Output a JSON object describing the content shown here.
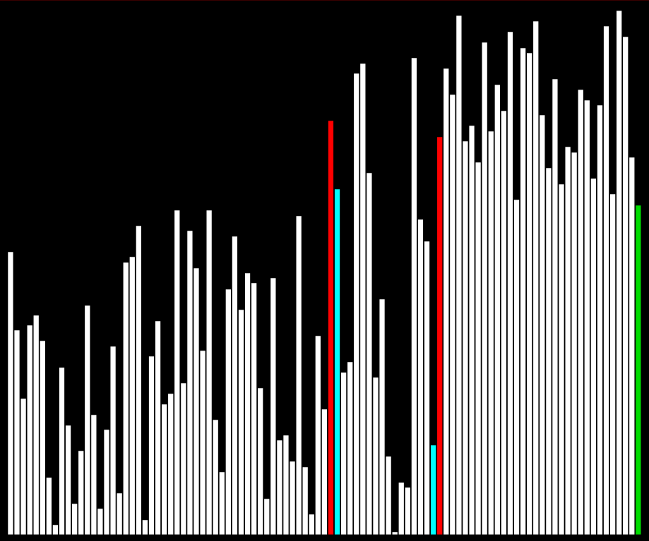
{
  "chart_data": {
    "type": "bar",
    "ylim": [
      0,
      745
    ],
    "grid": false,
    "legend": "none",
    "values": [
      401,
      290,
      193,
      297,
      311,
      275,
      81,
      14,
      237,
      155,
      44,
      119,
      325,
      170,
      37,
      149,
      267,
      59,
      386,
      394,
      438,
      21,
      253,
      303,
      185,
      200,
      460,
      215,
      431,
      378,
      261,
      460,
      163,
      89,
      348,
      423,
      319,
      371,
      357,
      208,
      51,
      364,
      134,
      141,
      104,
      452,
      96,
      29,
      282,
      178,
      587,
      490,
      230,
      245,
      654,
      668,
      513,
      223,
      334,
      111,
      4,
      74,
      67,
      676,
      447,
      416,
      127,
      564,
      661,
      624,
      736,
      558,
      580,
      528,
      698,
      572,
      638,
      601,
      713,
      475,
      690,
      683,
      728,
      595,
      520,
      646,
      497,
      550,
      542,
      631,
      616,
      505,
      609,
      721,
      483,
      743,
      706,
      535,
      467
    ],
    "highlights": [
      {
        "index": 50,
        "role": "red"
      },
      {
        "index": 51,
        "role": "cyan"
      },
      {
        "index": 66,
        "role": "cyan"
      },
      {
        "index": 67,
        "role": "red"
      },
      {
        "index": 98,
        "role": "green"
      }
    ],
    "colors": {
      "background": "#000000",
      "bar_fill": "#ffffff",
      "bar_outline": "#000000",
      "red": "#ff0000",
      "cyan": "#00ffff",
      "green": "#00dd00"
    }
  }
}
